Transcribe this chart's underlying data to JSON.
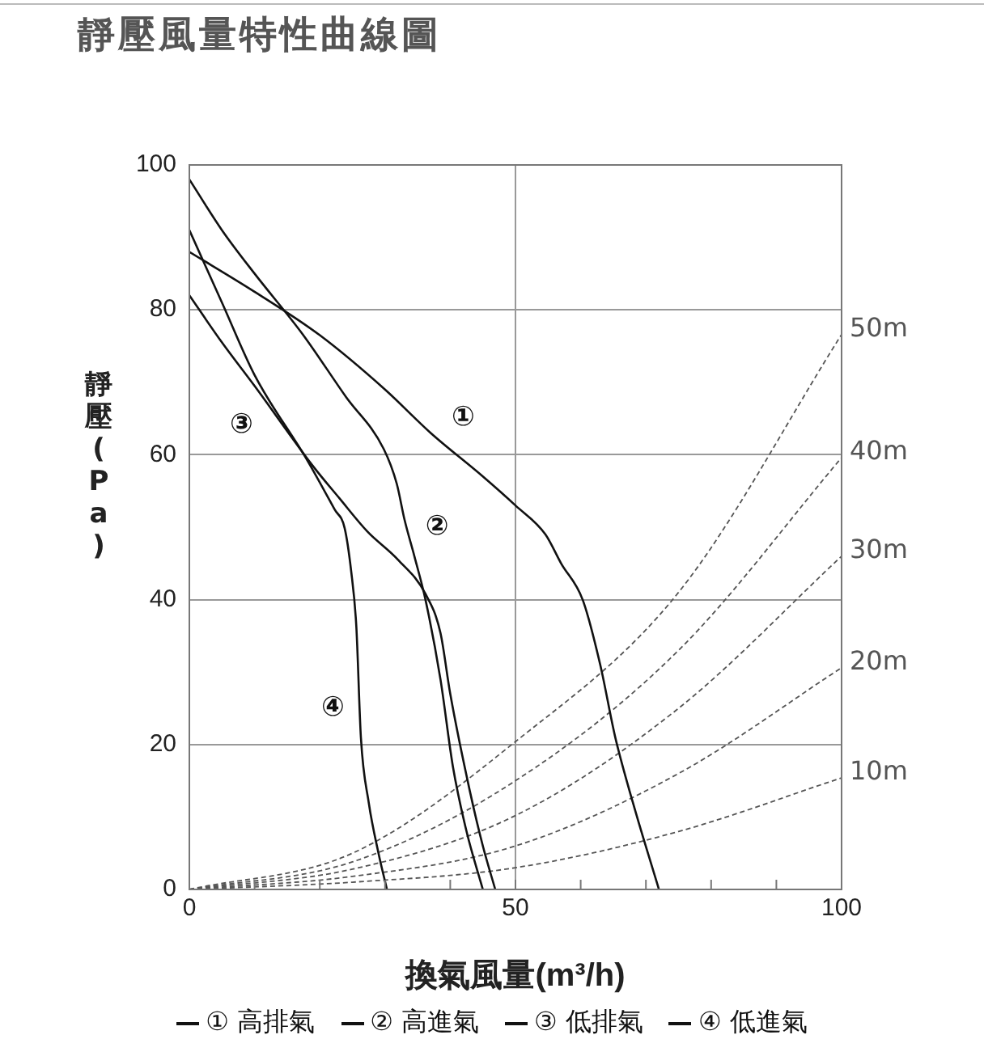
{
  "chart_data": {
    "type": "line",
    "title": "靜壓風量特性曲線圖",
    "xlabel": "換氣風量(m³/h)",
    "ylabel": "靜壓(Pa)",
    "xlim": [
      0,
      100
    ],
    "xticks": [
      0,
      {
        "value": 10,
        "label": null
      },
      {
        "value": 20,
        "label": null
      },
      {
        "value": 30,
        "label": null
      },
      {
        "value": 40,
        "label": null
      },
      50,
      {
        "value": 60,
        "label": null
      },
      {
        "value": 70,
        "label": null
      },
      {
        "value": 80,
        "label": null
      },
      {
        "value": 90,
        "label": null
      },
      100
    ],
    "ylim": [
      0,
      100
    ],
    "yticks": [
      0,
      20,
      40,
      60,
      80,
      100
    ],
    "grid": true,
    "legend": "bottom",
    "marker": "none",
    "series": [
      {
        "name": "① 高排氣",
        "color": "#111111",
        "line_style": "solid",
        "x": [
          0,
          10,
          20,
          30,
          37,
          45,
          50,
          54.6,
          57,
          60.3,
          63,
          65.3,
          68,
          72
        ],
        "values": [
          88,
          82.5,
          76.5,
          69,
          63,
          57,
          53,
          49,
          45,
          40,
          31,
          21,
          12,
          0
        ]
      },
      {
        "name": "② 高進氣",
        "color": "#111111",
        "line_style": "solid",
        "x": [
          0,
          5,
          10,
          17.4,
          24,
          29.8,
          31.8,
          33,
          34.5,
          36.2,
          38.5,
          40.4,
          42.5,
          45
        ],
        "values": [
          98,
          91,
          85,
          76.6,
          68,
          60.8,
          56,
          51,
          46,
          40,
          29,
          17,
          8,
          0
        ]
      },
      {
        "name": "③ 低排氣",
        "color": "#111111",
        "line_style": "solid",
        "x": [
          0,
          5,
          10,
          18.9,
          23,
          27.3,
          32,
          36.2,
          38.5,
          40,
          43,
          45,
          46.9
        ],
        "values": [
          82,
          75.5,
          69.5,
          58.5,
          54,
          49.4,
          45.5,
          40.8,
          35.4,
          27,
          13.6,
          6,
          0
        ]
      },
      {
        "name": "④ 低進氣",
        "color": "#111111",
        "line_style": "solid",
        "x": [
          0,
          5,
          10,
          18.1,
          22.3,
          23.8,
          24.8,
          25.6,
          26.3,
          27.5,
          29,
          30.3
        ],
        "values": [
          91,
          81,
          71,
          59.2,
          52.4,
          49.9,
          44,
          36.3,
          21,
          12,
          5,
          0
        ]
      },
      {
        "name": "10m",
        "color": "#555555",
        "line_style": "dashed",
        "x": [
          0,
          25,
          50,
          75,
          100
        ],
        "values": [
          0,
          1,
          3,
          8,
          15.4
        ]
      },
      {
        "name": "20m",
        "color": "#555555",
        "line_style": "dashed",
        "x": [
          0,
          25,
          50,
          75,
          100
        ],
        "values": [
          0,
          1.8,
          6,
          16,
          30.6
        ]
      },
      {
        "name": "30m",
        "color": "#555555",
        "line_style": "dashed",
        "x": [
          0,
          25,
          50,
          75,
          100
        ],
        "values": [
          0,
          2.8,
          10.2,
          25,
          46
        ]
      },
      {
        "name": "40m",
        "color": "#555555",
        "line_style": "dashed",
        "x": [
          0,
          25,
          50,
          75,
          100
        ],
        "values": [
          0,
          3.8,
          15,
          33,
          59.6
        ]
      },
      {
        "name": "50m",
        "color": "#555555",
        "line_style": "dashed",
        "x": [
          0,
          25,
          50,
          75,
          100
        ],
        "values": [
          0,
          5,
          20.4,
          41,
          76.6
        ]
      }
    ],
    "annotations": [
      {
        "text": "①",
        "x": 42,
        "y": 65
      },
      {
        "text": "②",
        "x": 38,
        "y": 50
      },
      {
        "text": "③",
        "x": 8,
        "y": 64
      },
      {
        "text": "④",
        "x": 22,
        "y": 25
      }
    ]
  }
}
